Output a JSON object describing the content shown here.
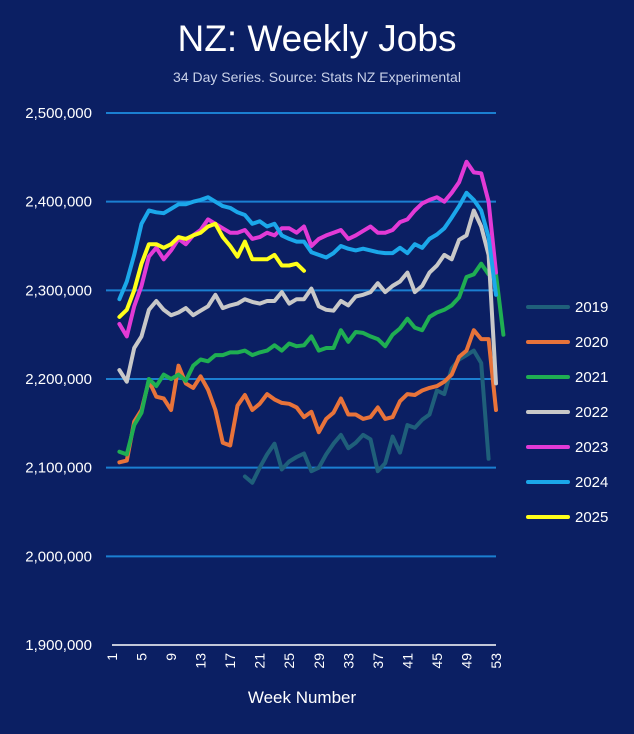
{
  "chart_data": {
    "type": "line",
    "title": "NZ: Weekly Jobs",
    "subtitle": "34 Day Series. Source: Stats NZ Experimental",
    "xlabel": "Week Number",
    "ylabel": "",
    "xlim": [
      1,
      53
    ],
    "ylim": [
      1900000,
      2500000
    ],
    "y_ticks": [
      1900000,
      2000000,
      2100000,
      2200000,
      2300000,
      2400000,
      2500000
    ],
    "y_tick_labels": [
      "1,900,000",
      "2,000,000",
      "2,100,000",
      "2,200,000",
      "2,300,000",
      "2,400,000",
      "2,500,000"
    ],
    "x_ticks": [
      1,
      5,
      9,
      13,
      17,
      21,
      25,
      29,
      33,
      37,
      41,
      45,
      49,
      53
    ],
    "grid": "horizontal",
    "legend_position": "right",
    "series": [
      {
        "name": "2019",
        "color": "#1f5f7a",
        "start_week": 19,
        "values": [
          2090000,
          2083000,
          2100000,
          2115000,
          2127000,
          2098000,
          2107000,
          2112000,
          2116000,
          2096000,
          2100000,
          2115000,
          2127000,
          2137000,
          2122000,
          2128000,
          2137000,
          2132000,
          2096000,
          2105000,
          2135000,
          2117000,
          2148000,
          2145000,
          2154000,
          2160000,
          2187000,
          2183000,
          2212000,
          2222000,
          2227000,
          2232000,
          2218000,
          2110000
        ]
      },
      {
        "name": "2020",
        "color": "#e8733a",
        "start_week": 2,
        "values": [
          2106000,
          2108000,
          2152000,
          2165000,
          2198000,
          2180000,
          2178000,
          2165000,
          2215000,
          2195000,
          2190000,
          2203000,
          2188000,
          2165000,
          2128000,
          2125000,
          2170000,
          2182000,
          2165000,
          2172000,
          2183000,
          2177000,
          2173000,
          2172000,
          2168000,
          2157000,
          2163000,
          2140000,
          2155000,
          2162000,
          2178000,
          2160000,
          2160000,
          2155000,
          2157000,
          2168000,
          2155000,
          2157000,
          2175000,
          2183000,
          2182000,
          2187000,
          2190000,
          2192000,
          2197000,
          2205000,
          2225000,
          2232000,
          2255000,
          2245000,
          2245000,
          2165000
        ]
      },
      {
        "name": "2021",
        "color": "#1fae52",
        "start_week": 2,
        "values": [
          2118000,
          2115000,
          2148000,
          2162000,
          2200000,
          2192000,
          2205000,
          2200000,
          2205000,
          2198000,
          2215000,
          2222000,
          2220000,
          2227000,
          2227000,
          2230000,
          2230000,
          2232000,
          2227000,
          2230000,
          2232000,
          2238000,
          2232000,
          2240000,
          2237000,
          2238000,
          2248000,
          2232000,
          2235000,
          2235000,
          2255000,
          2242000,
          2253000,
          2252000,
          2248000,
          2245000,
          2237000,
          2250000,
          2257000,
          2268000,
          2258000,
          2255000,
          2270000,
          2275000,
          2278000,
          2283000,
          2292000,
          2315000,
          2318000,
          2330000,
          2318000,
          2318000,
          2250000
        ]
      },
      {
        "name": "2022",
        "color": "#c8c8c8",
        "start_week": 2,
        "values": [
          2210000,
          2197000,
          2235000,
          2248000,
          2278000,
          2288000,
          2278000,
          2272000,
          2275000,
          2280000,
          2272000,
          2277000,
          2282000,
          2295000,
          2280000,
          2283000,
          2285000,
          2290000,
          2287000,
          2285000,
          2288000,
          2288000,
          2298000,
          2285000,
          2290000,
          2290000,
          2302000,
          2282000,
          2278000,
          2277000,
          2288000,
          2283000,
          2293000,
          2295000,
          2298000,
          2308000,
          2298000,
          2305000,
          2310000,
          2320000,
          2298000,
          2305000,
          2320000,
          2328000,
          2340000,
          2335000,
          2357000,
          2362000,
          2390000,
          2372000,
          2340000,
          2195000
        ]
      },
      {
        "name": "2023",
        "color": "#e23ad6",
        "start_week": 2,
        "values": [
          2262000,
          2248000,
          2282000,
          2305000,
          2338000,
          2348000,
          2335000,
          2345000,
          2358000,
          2352000,
          2362000,
          2368000,
          2380000,
          2375000,
          2370000,
          2365000,
          2365000,
          2368000,
          2358000,
          2360000,
          2365000,
          2362000,
          2370000,
          2370000,
          2365000,
          2372000,
          2350000,
          2358000,
          2362000,
          2365000,
          2368000,
          2358000,
          2362000,
          2367000,
          2372000,
          2365000,
          2365000,
          2368000,
          2377000,
          2380000,
          2390000,
          2398000,
          2402000,
          2405000,
          2400000,
          2410000,
          2422000,
          2445000,
          2433000,
          2432000,
          2400000,
          2320000
        ]
      },
      {
        "name": "2024",
        "color": "#1ba7ea",
        "start_week": 2,
        "values": [
          2290000,
          2310000,
          2340000,
          2375000,
          2390000,
          2388000,
          2387000,
          2392000,
          2397000,
          2397000,
          2400000,
          2402000,
          2405000,
          2400000,
          2395000,
          2393000,
          2388000,
          2385000,
          2375000,
          2378000,
          2372000,
          2375000,
          2362000,
          2358000,
          2355000,
          2355000,
          2343000,
          2340000,
          2337000,
          2342000,
          2350000,
          2347000,
          2345000,
          2347000,
          2345000,
          2343000,
          2342000,
          2342000,
          2348000,
          2342000,
          2352000,
          2348000,
          2358000,
          2363000,
          2370000,
          2382000,
          2395000,
          2410000,
          2402000,
          2390000,
          2360000,
          2295000
        ]
      },
      {
        "name": "2025",
        "color": "#ffff1a",
        "start_week": 2,
        "values": [
          2270000,
          2278000,
          2300000,
          2330000,
          2352000,
          2352000,
          2348000,
          2352000,
          2360000,
          2358000,
          2362000,
          2365000,
          2372000,
          2375000,
          2360000,
          2350000,
          2338000,
          2355000,
          2335000,
          2335000,
          2335000,
          2340000,
          2328000,
          2328000,
          2330000,
          2322000
        ]
      }
    ]
  }
}
